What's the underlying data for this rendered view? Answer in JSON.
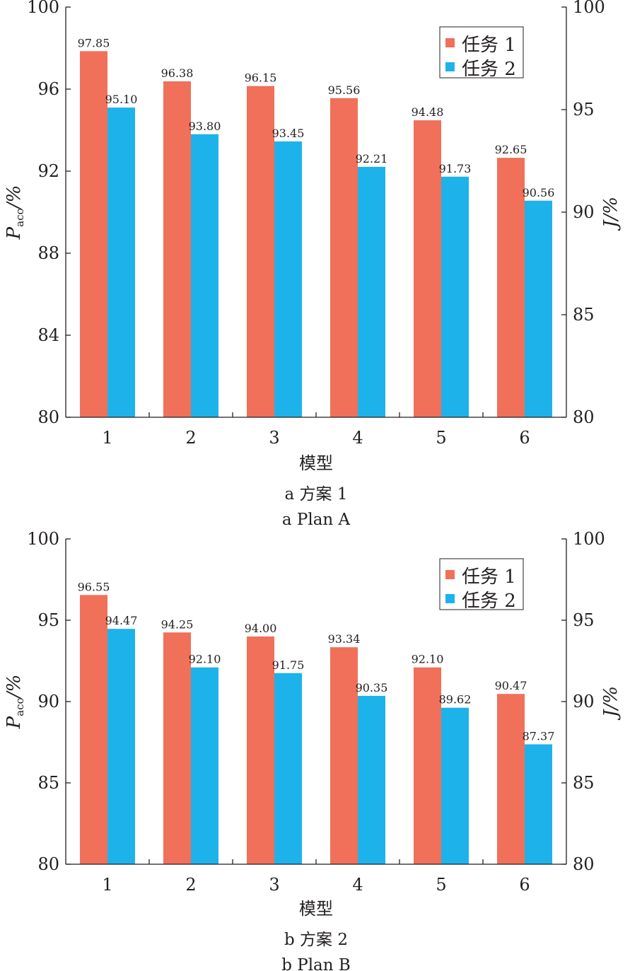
{
  "chart_data": [
    {
      "type": "bar",
      "categories": [
        "1",
        "2",
        "3",
        "4",
        "5",
        "6"
      ],
      "series": [
        {
          "name": "任务 1",
          "values": [
            97.85,
            96.38,
            96.15,
            95.56,
            94.48,
            92.65
          ],
          "labels": [
            "97.85",
            "96.38",
            "96.15",
            "95.56",
            "94.48",
            "92.65"
          ],
          "color": "#f07059"
        },
        {
          "name": "任务 2",
          "values": [
            95.1,
            93.8,
            93.45,
            92.21,
            91.73,
            90.56
          ],
          "labels": [
            "95.10",
            "93.80",
            "93.45",
            "92.21",
            "91.73",
            "90.56"
          ],
          "color": "#1db3ea"
        }
      ],
      "xlabel": "模型",
      "ylabel": "P",
      "ylabel_sub": "acc",
      "ylabel_unit": "/%",
      "y2label": "J/%",
      "ylim": [
        80,
        100
      ],
      "yticks": [
        "80",
        "84",
        "88",
        "92",
        "96",
        "100"
      ],
      "y2lim": [
        80,
        100
      ],
      "y2ticks": [
        "80",
        "85",
        "90",
        "95",
        "100"
      ],
      "legend_position": "top-right",
      "grid": false,
      "caption_cn": "a  方案 1",
      "caption_en": "a  Plan A"
    },
    {
      "type": "bar",
      "categories": [
        "1",
        "2",
        "3",
        "4",
        "5",
        "6"
      ],
      "series": [
        {
          "name": "任务 1",
          "values": [
            96.55,
            94.25,
            94.0,
            93.34,
            92.1,
            90.47
          ],
          "labels": [
            "96.55",
            "94.25",
            "94.00",
            "93.34",
            "92.10",
            "90.47"
          ],
          "color": "#f07059"
        },
        {
          "name": "任务 2",
          "values": [
            94.47,
            92.1,
            91.75,
            90.35,
            89.62,
            87.37
          ],
          "labels": [
            "94.47",
            "92.10",
            "91.75",
            "90.35",
            "89.62",
            "87.37"
          ],
          "color": "#1db3ea"
        }
      ],
      "xlabel": "模型",
      "ylabel": "P",
      "ylabel_sub": "acc",
      "ylabel_unit": "/%",
      "y2label": "J/%",
      "ylim": [
        80,
        100
      ],
      "yticks": [
        "80",
        "85",
        "90",
        "95",
        "100"
      ],
      "y2lim": [
        80,
        100
      ],
      "y2ticks": [
        "80",
        "85",
        "90",
        "95",
        "100"
      ],
      "legend_position": "top-right",
      "grid": false,
      "caption_cn": "b  方案 2",
      "caption_en": "b  Plan B"
    }
  ]
}
